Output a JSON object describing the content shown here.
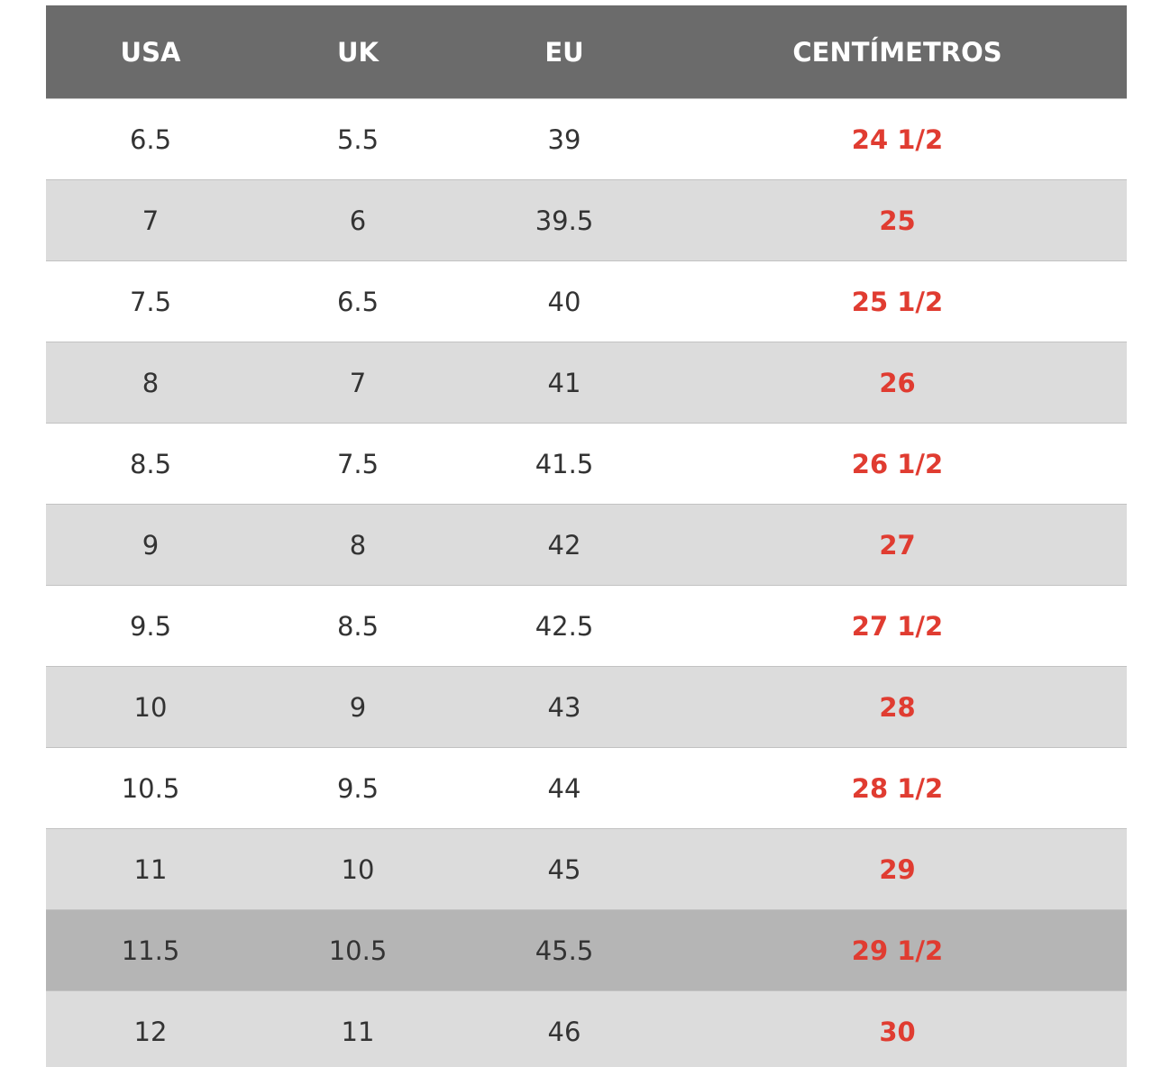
{
  "table": {
    "header": [
      "USA",
      "UK",
      "EU",
      "CENTÍMETROS"
    ],
    "rows": [
      [
        "6.5",
        "5.5",
        "39",
        "24 1/2"
      ],
      [
        "7",
        "6",
        "39.5",
        "25"
      ],
      [
        "7.5",
        "6.5",
        "40",
        "25 1/2"
      ],
      [
        "8",
        "7",
        "41",
        "26"
      ],
      [
        "8.5",
        "7.5",
        "41.5",
        "26 1/2"
      ],
      [
        "9",
        "8",
        "42",
        "27"
      ],
      [
        "9.5",
        "8.5",
        "42.5",
        "27 1/2"
      ],
      [
        "10",
        "9",
        "43",
        "28"
      ],
      [
        "10.5",
        "9.5",
        "44",
        "28 1/2"
      ],
      [
        "11",
        "10",
        "45",
        "29"
      ],
      [
        "11.5",
        "10.5",
        "45.5",
        "29 1/2"
      ],
      [
        "12",
        "11",
        "46",
        "30"
      ]
    ]
  }
}
